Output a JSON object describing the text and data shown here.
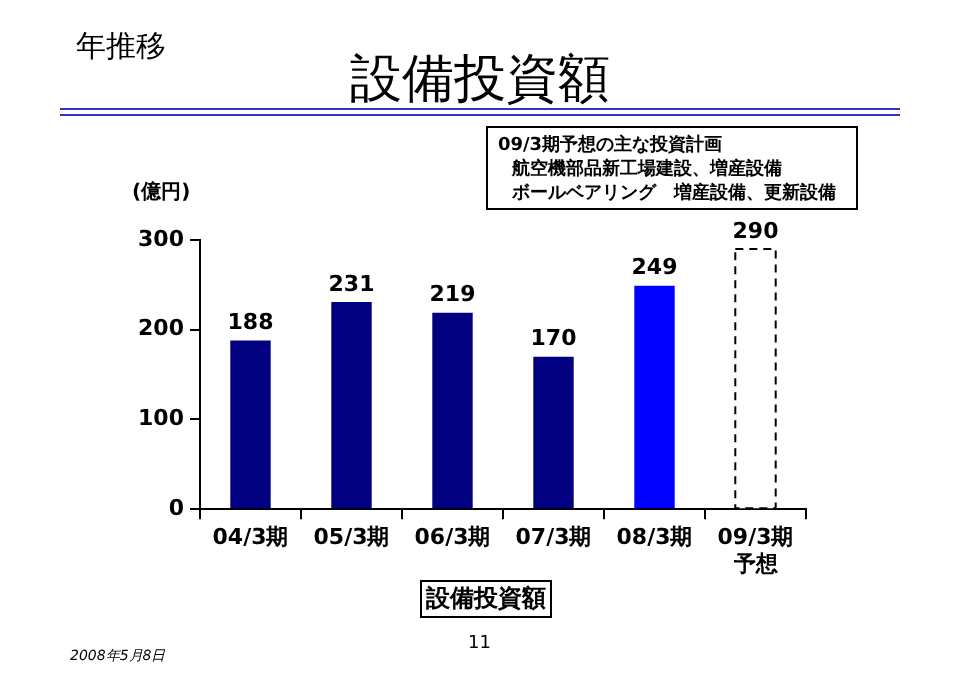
{
  "chart_data": {
    "type": "bar",
    "title": "設備投資額",
    "xlabel": "設備投資額",
    "ylabel": "(億円)",
    "categories": [
      "04/3期",
      "05/3期",
      "06/3期",
      "07/3期",
      "08/3期",
      "09/3期予想"
    ],
    "stacked": true,
    "series": [
      {
        "color": "#000080",
        "colors": [
          "#000080",
          "#000080",
          "#000080",
          "#000080",
          "#0000ff",
          null
        ],
        "values": [
          188,
          231,
          219,
          170,
          249,
          null
        ]
      },
      {
        "color": "#ffffff",
        "line_style": "dashed",
        "values": [
          null,
          null,
          null,
          null,
          null,
          290
        ]
      }
    ],
    "ylim": [
      0,
      300
    ],
    "yticks": [
      0,
      100,
      200,
      300
    ],
    "grid": false,
    "legend": false,
    "data_labels": true,
    "annotations": [
      "年推移",
      "09/3期予想の主な投資計画",
      "航空機部品新工場建設、増産設備",
      "ボールベアリング　増産設備、更新設備",
      "2008年5月8日",
      "11"
    ]
  }
}
